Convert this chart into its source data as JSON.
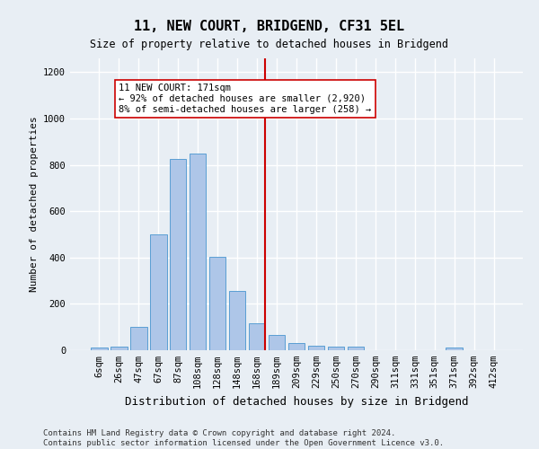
{
  "title": "11, NEW COURT, BRIDGEND, CF31 5EL",
  "subtitle": "Size of property relative to detached houses in Bridgend",
  "xlabel": "Distribution of detached houses by size in Bridgend",
  "ylabel": "Number of detached properties",
  "bar_labels": [
    "6sqm",
    "26sqm",
    "47sqm",
    "67sqm",
    "87sqm",
    "108sqm",
    "128sqm",
    "148sqm",
    "168sqm",
    "189sqm",
    "209sqm",
    "229sqm",
    "250sqm",
    "270sqm",
    "290sqm",
    "311sqm",
    "331sqm",
    "351sqm",
    "371sqm",
    "392sqm",
    "412sqm"
  ],
  "bar_values": [
    10,
    15,
    100,
    500,
    825,
    850,
    405,
    255,
    115,
    65,
    30,
    20,
    15,
    15,
    0,
    0,
    0,
    0,
    10,
    0,
    0
  ],
  "bar_color": "#aec6e8",
  "bar_edge_color": "#5a9fd4",
  "property_line_x": 8.4,
  "annotation_text": "11 NEW COURT: 171sqm\n← 92% of detached houses are smaller (2,920)\n8% of semi-detached houses are larger (258) →",
  "vline_color": "#cc0000",
  "annotation_box_color": "#ffffff",
  "annotation_box_edge": "#cc0000",
  "footer_text": "Contains HM Land Registry data © Crown copyright and database right 2024.\nContains public sector information licensed under the Open Government Licence v3.0.",
  "ylim": [
    0,
    1260
  ],
  "yticks": [
    0,
    200,
    400,
    600,
    800,
    1000,
    1200
  ],
  "background_color": "#e8eef4",
  "plot_bg_color": "#e8eef4",
  "grid_color": "#ffffff",
  "title_fontsize": 11,
  "subtitle_fontsize": 8.5,
  "ylabel_fontsize": 8,
  "xlabel_fontsize": 9,
  "tick_fontsize": 7.5,
  "annotation_fontsize": 7.5,
  "footer_fontsize": 6.5
}
